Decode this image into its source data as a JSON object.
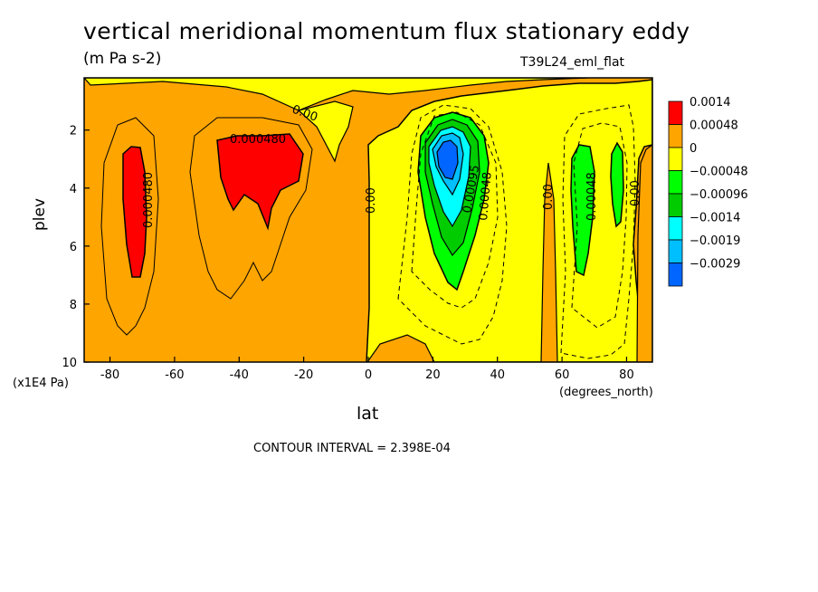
{
  "chart_data": {
    "type": "heatmap",
    "title": "vertical meridional momentum flux stationary eddy",
    "units": "(m Pa s-2)",
    "run_label": "T39L24_eml_flat",
    "xlabel": "lat",
    "x_units": "(degrees_north)",
    "ylabel": "plev",
    "y_units": "(x1E4 Pa)",
    "x_ticks": [
      -80,
      -60,
      -40,
      -20,
      0,
      20,
      40,
      60,
      80
    ],
    "y_ticks": [
      2,
      4,
      6,
      8,
      10
    ],
    "xlim": [
      -88,
      88
    ],
    "ylim": [
      10,
      0.2
    ],
    "contour_interval_text": "CONTOUR INTERVAL = 2.398E-04",
    "legend": [
      {
        "label": "0.0014",
        "color": "#ff0000"
      },
      {
        "label": "0.00048",
        "color": "#ffa500"
      },
      {
        "label": "0",
        "color": "#ffff00"
      },
      {
        "label": "−0.00048",
        "color": "#00ff00"
      },
      {
        "label": "−0.00096",
        "color": "#00cc00"
      },
      {
        "label": "−0.0014",
        "color": "#00ffff"
      },
      {
        "label": "−0.0019",
        "color": "#00bfff"
      },
      {
        "label": "−0.0029",
        "color": "#0066ff"
      }
    ],
    "contour_labels": [
      "0.000480",
      "0.000480",
      "0.00",
      "0.00",
      "0.00095",
      "0.00048",
      "0.00",
      "0.00048",
      "0.00"
    ],
    "features": [
      {
        "name": "positive core",
        "lat": -72,
        "plev": 4.5,
        "value": 0.0014
      },
      {
        "name": "positive core",
        "lat": -34,
        "plev": 3.2,
        "value": 0.0014
      },
      {
        "name": "negative core",
        "lat": 25,
        "plev": 3.0,
        "value": -0.0029
      },
      {
        "name": "negative core",
        "lat": 67,
        "plev": 4.4,
        "value": -0.00096
      },
      {
        "name": "negative core",
        "lat": 77,
        "plev": 4.0,
        "value": -0.00096
      }
    ]
  }
}
